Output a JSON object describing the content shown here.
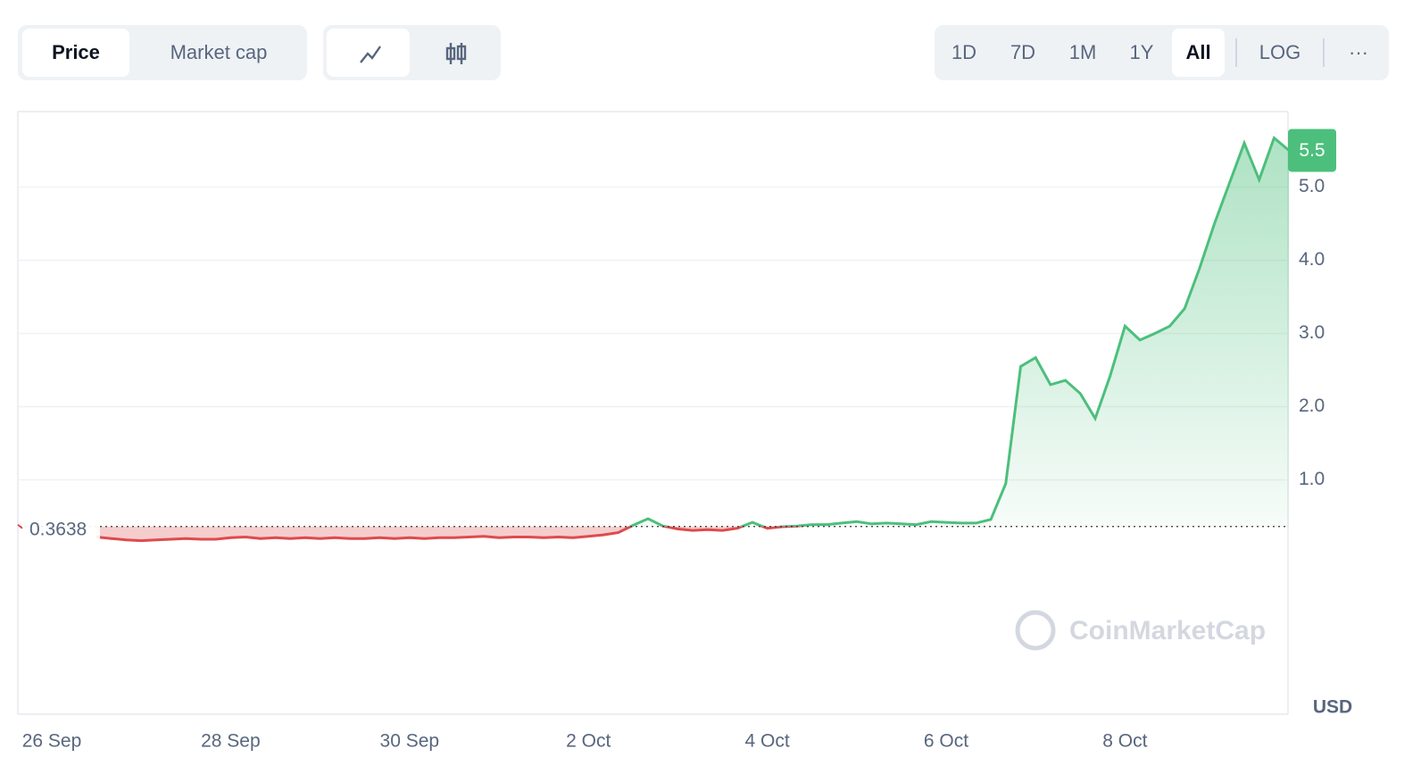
{
  "ui": {
    "metric_tabs": [
      "Price",
      "Market cap"
    ],
    "ranges": [
      "1D",
      "7D",
      "1M",
      "1Y",
      "All"
    ],
    "log": "LOG",
    "more": "···"
  },
  "chart_data": {
    "type": "line",
    "categories": [
      "26 Sep",
      null,
      null,
      null,
      null,
      null,
      null,
      null,
      null,
      null,
      null,
      null,
      "28 Sep",
      null,
      null,
      null,
      null,
      null,
      null,
      null,
      null,
      null,
      null,
      null,
      "30 Sep",
      null,
      null,
      null,
      null,
      null,
      null,
      null,
      null,
      null,
      null,
      null,
      "2 Oct",
      null,
      null,
      null,
      null,
      null,
      null,
      null,
      null,
      null,
      null,
      null,
      "4 Oct",
      null,
      null,
      null,
      null,
      null,
      null,
      null,
      null,
      null,
      null,
      null,
      "6 Oct",
      null,
      null,
      null,
      null,
      null,
      null,
      null,
      null,
      null,
      null,
      null,
      "8 Oct",
      null,
      null,
      null,
      null,
      null,
      null,
      null,
      null,
      null,
      null,
      null
    ],
    "values": [
      null,
      null,
      null,
      0.22,
      0.2,
      0.18,
      0.17,
      0.18,
      0.19,
      0.2,
      0.19,
      0.19,
      0.21,
      0.22,
      0.2,
      0.21,
      0.2,
      0.21,
      0.2,
      0.21,
      0.2,
      0.2,
      0.21,
      0.2,
      0.21,
      0.2,
      0.21,
      0.21,
      0.22,
      0.23,
      0.21,
      0.22,
      0.22,
      0.21,
      0.22,
      0.21,
      0.23,
      0.25,
      0.28,
      0.38,
      0.47,
      0.37,
      0.33,
      0.31,
      0.32,
      0.31,
      0.34,
      0.42,
      0.34,
      0.36,
      0.37,
      0.39,
      0.39,
      0.41,
      0.43,
      0.4,
      0.41,
      0.4,
      0.39,
      0.43,
      0.42,
      0.41,
      0.41,
      0.46,
      0.95,
      2.55,
      2.67,
      2.3,
      2.36,
      2.18,
      1.84,
      2.42,
      3.1,
      2.91,
      3.0,
      3.1,
      3.34,
      3.89,
      4.5,
      5.05,
      5.6,
      5.1,
      5.67,
      5.5
    ],
    "baseline": 0.3638,
    "color_up": "#4cbf7c",
    "color_down": "#df4a4d",
    "ylim": [
      -2.2,
      6.03
    ],
    "yticks": [
      {
        "value": 1,
        "label": "1.0"
      },
      {
        "value": 2,
        "label": "2.0"
      },
      {
        "value": 3,
        "label": "3.0"
      },
      {
        "value": 4,
        "label": "4.0"
      },
      {
        "value": 5,
        "label": "5.0"
      }
    ],
    "grid": true,
    "currency": "USD",
    "watermark": "CoinMarketCap"
  }
}
